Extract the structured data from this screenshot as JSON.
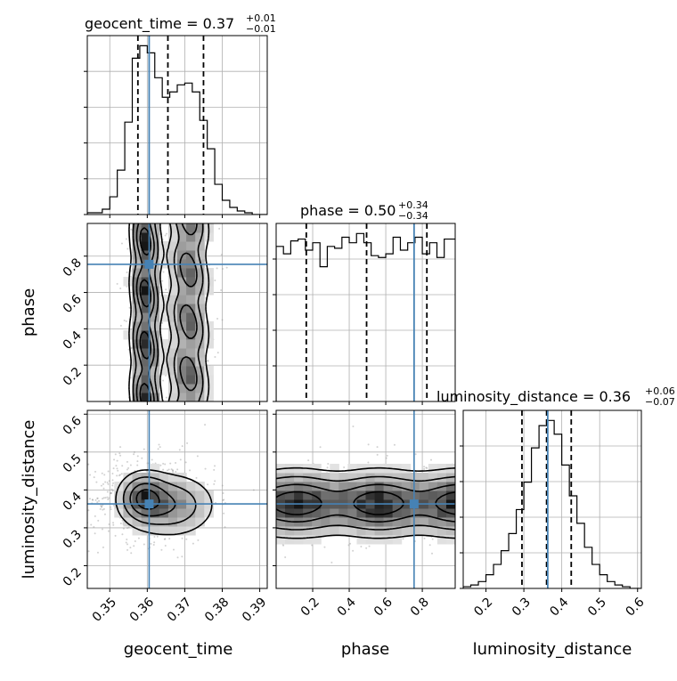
{
  "chart_data": {
    "type": "corner",
    "parameters": [
      "geocent_time",
      "phase",
      "luminosity_distance"
    ],
    "axis_labels": {
      "geocent_time": "geocent_time",
      "phase": "phase",
      "luminosity_distance": "luminosity_distance"
    },
    "ranges": {
      "geocent_time": [
        0.344,
        0.392
      ],
      "phase": [
        0.0,
        0.98
      ],
      "luminosity_distance": [
        0.14,
        0.61
      ]
    },
    "truths": {
      "geocent_time": 0.3605,
      "phase": 0.755,
      "luminosity_distance": 0.363
    },
    "titles": [
      {
        "param": "geocent_time",
        "label": "geocent_time = 0.37",
        "plus": "+0.01",
        "minus": "−0.01"
      },
      {
        "param": "phase",
        "label": "phase = 0.50",
        "plus": "+0.34",
        "minus": "−0.34"
      },
      {
        "param": "luminosity_distance",
        "label": "luminosity_distance = 0.36",
        "plus": "+0.06",
        "minus": "−0.07"
      }
    ],
    "quantiles": {
      "geocent_time": [
        0.3575,
        0.3655,
        0.375
      ],
      "phase": [
        0.165,
        0.495,
        0.825
      ],
      "luminosity_distance": [
        0.295,
        0.36,
        0.425
      ]
    },
    "ticks": {
      "geocent_time": [
        "0.35",
        "0.36",
        "0.37",
        "0.38",
        "0.39"
      ],
      "phase": [
        "0.2",
        "0.4",
        "0.6",
        "0.8"
      ],
      "luminosity_distance": [
        "0.2",
        "0.3",
        "0.4",
        "0.5",
        "0.6"
      ]
    },
    "histograms": {
      "geocent_time": {
        "edges": [
          0.344,
          0.346,
          0.348,
          0.35,
          0.352,
          0.354,
          0.356,
          0.358,
          0.36,
          0.362,
          0.364,
          0.366,
          0.368,
          0.37,
          0.372,
          0.374,
          0.376,
          0.378,
          0.38,
          0.382,
          0.384,
          0.386,
          0.388,
          0.39,
          0.392
        ],
        "counts": [
          1,
          1,
          3,
          10,
          25,
          52,
          88,
          95,
          91,
          77,
          66,
          69,
          73,
          74,
          69,
          53,
          37,
          17,
          8,
          4,
          2,
          1,
          0,
          0
        ]
      },
      "phase": {
        "edges": [
          0.0,
          0.04,
          0.08,
          0.12,
          0.16,
          0.2,
          0.24,
          0.28,
          0.32,
          0.36,
          0.4,
          0.44,
          0.48,
          0.52,
          0.56,
          0.6,
          0.64,
          0.68,
          0.72,
          0.76,
          0.8,
          0.84,
          0.88,
          0.92,
          0.96,
          0.98
        ],
        "counts": [
          84,
          80,
          87,
          88,
          82,
          86,
          73,
          84,
          83,
          89,
          86,
          91,
          86,
          79,
          78,
          80,
          89,
          82,
          86,
          89,
          80,
          86,
          78,
          88,
          88
        ]
      },
      "luminosity_distance": {
        "edges": [
          0.14,
          0.16,
          0.18,
          0.2,
          0.22,
          0.24,
          0.26,
          0.28,
          0.3,
          0.32,
          0.34,
          0.36,
          0.38,
          0.4,
          0.42,
          0.44,
          0.46,
          0.48,
          0.5,
          0.52,
          0.54,
          0.56,
          0.58,
          0.6,
          0.61
        ],
        "counts": [
          1,
          2,
          4,
          8,
          14,
          22,
          32,
          46,
          62,
          82,
          95,
          98,
          90,
          72,
          54,
          38,
          24,
          14,
          8,
          4,
          2,
          1,
          0,
          0
        ]
      }
    },
    "density": {
      "geocent_time_vs_phase": {
        "x_param": "geocent_time",
        "y_param": "phase",
        "clusters": [
          {
            "cx": 0.3595,
            "sx": 0.0021,
            "weight": 0.6
          },
          {
            "cx": 0.371,
            "sx": 0.0028,
            "weight": 0.45
          }
        ]
      },
      "geocent_time_vs_luminosity_distance": {
        "x_param": "geocent_time",
        "y_param": "luminosity_distance",
        "center": [
          0.3615,
          0.375
        ],
        "spread": [
          0.007,
          0.05
        ]
      },
      "phase_vs_luminosity_distance": {
        "x_param": "phase",
        "y_param": "luminosity_distance",
        "center_y": 0.365,
        "spread_y": 0.045
      }
    },
    "grid": true
  }
}
